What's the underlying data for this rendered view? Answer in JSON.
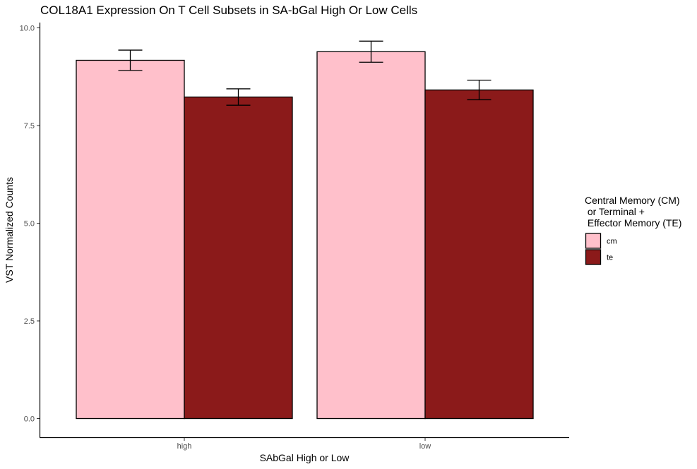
{
  "chart_data": {
    "type": "bar",
    "title": "COL18A1 Expression On T Cell Subsets in SA-bGal High Or Low Cells",
    "xlabel": "SAbGal High or Low",
    "ylabel": "VST Normalized Counts",
    "categories": [
      "high",
      "low"
    ],
    "ylim": [
      0,
      10
    ],
    "yticks": [
      "0.0",
      "2.5",
      "5.0",
      "7.5",
      "10.0"
    ],
    "grid": false,
    "legend": {
      "title_lines": [
        "Central Memory (CM)",
        " or Terminal +",
        " Effector Memory (TE)"
      ],
      "placement": "right"
    },
    "series": [
      {
        "name": "cm",
        "color": "#FFC0CB",
        "values": [
          9.17,
          9.39
        ],
        "err_low": [
          8.91,
          9.12
        ],
        "err_high": [
          9.43,
          9.66
        ]
      },
      {
        "name": "te",
        "color": "#8B1A1A",
        "values": [
          8.23,
          8.41
        ],
        "err_low": [
          8.02,
          8.16
        ],
        "err_high": [
          8.44,
          8.66
        ]
      }
    ]
  }
}
